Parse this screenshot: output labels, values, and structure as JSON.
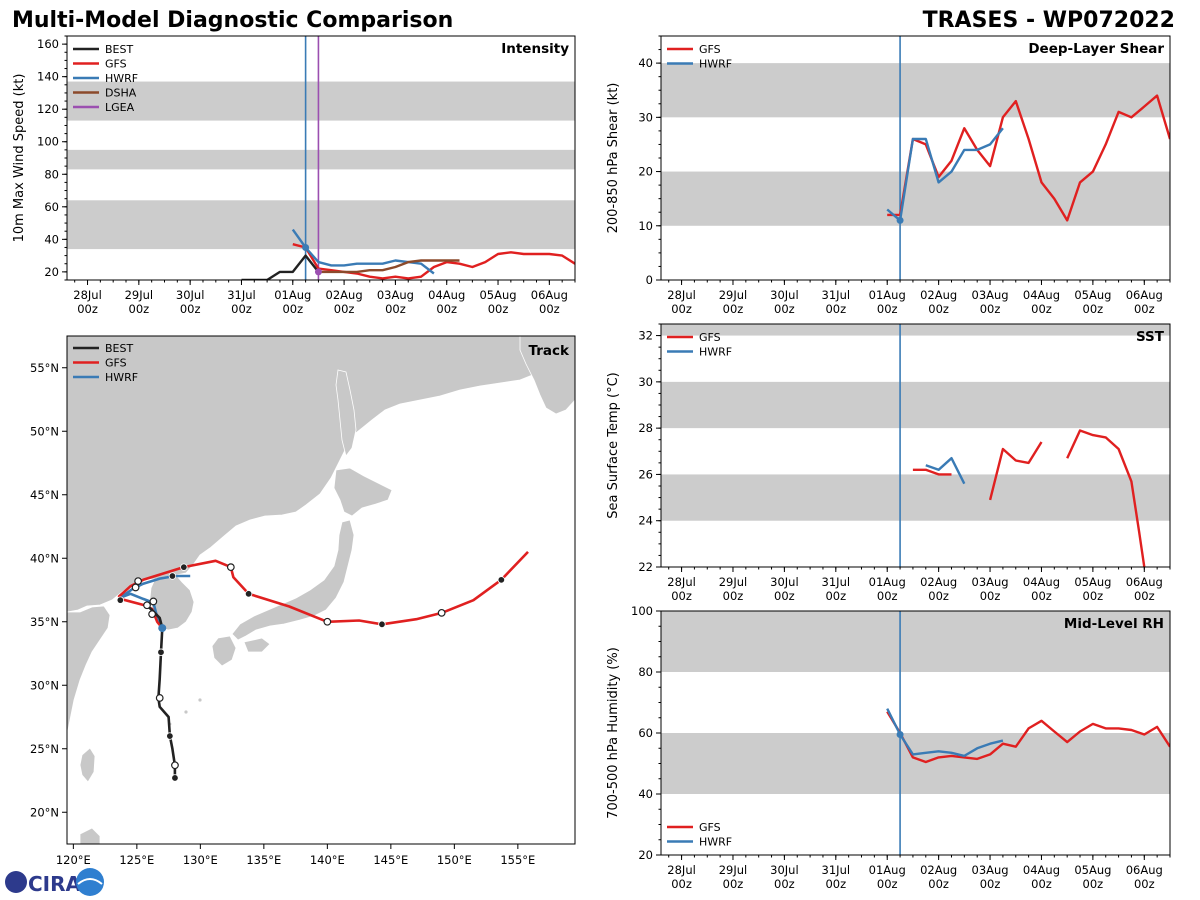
{
  "header": {
    "title": "Multi-Model Diagnostic Comparison",
    "storm": "TRASES - WP072022"
  },
  "logo": {
    "text": "CIRA"
  },
  "colors": {
    "BEST": "#222222",
    "GFS": "#e02020",
    "HWRF": "#3a7bb5",
    "DSHA": "#8b4a2b",
    "LGEA": "#9b4fb0",
    "band": "#cccccc",
    "land": "#c8c8c8"
  },
  "time_axis": {
    "labels": [
      [
        "28Jul",
        "00z"
      ],
      [
        "29Jul",
        "00z"
      ],
      [
        "30Jul",
        "00z"
      ],
      [
        "31Jul",
        "00z"
      ],
      [
        "01Aug",
        "00z"
      ],
      [
        "02Aug",
        "00z"
      ],
      [
        "03Aug",
        "00z"
      ],
      [
        "04Aug",
        "00z"
      ],
      [
        "05Aug",
        "00z"
      ],
      [
        "06Aug",
        "00z"
      ]
    ],
    "range_days": [
      -0.4,
      9.5
    ],
    "init_marker_day": 4.25,
    "lgea_marker_day": 4.5
  },
  "chart_data": [
    {
      "id": "intensity",
      "type": "line",
      "title": "Intensity",
      "ylabel": "10m Max Wind Speed (kt)",
      "ylim": [
        15,
        165
      ],
      "yticks": [
        20,
        40,
        60,
        80,
        100,
        120,
        140,
        160
      ],
      "bands": [
        [
          34,
          64
        ],
        [
          83,
          95
        ],
        [
          113,
          137
        ]
      ],
      "legend": [
        "BEST",
        "GFS",
        "HWRF",
        "DSHA",
        "LGEA"
      ],
      "series": [
        {
          "name": "BEST",
          "x": [
            3.0,
            3.25,
            3.5,
            3.75,
            4.0,
            4.25,
            4.5
          ],
          "y": [
            15,
            15,
            15,
            20,
            20,
            30,
            20
          ]
        },
        {
          "name": "GFS",
          "x": [
            4.0,
            4.25,
            4.5,
            4.75,
            5.0,
            5.25,
            5.5,
            5.75,
            6.0,
            6.25,
            6.5,
            6.75,
            7.0,
            7.25,
            7.5,
            7.75,
            8.0,
            8.25,
            8.5,
            8.75,
            9.0,
            9.25,
            9.5
          ],
          "y": [
            37,
            35,
            22,
            21,
            20,
            19,
            17,
            16,
            17,
            16,
            17,
            23,
            26,
            25,
            23,
            26,
            31,
            32,
            31,
            31,
            31,
            30,
            25
          ]
        },
        {
          "name": "HWRF",
          "x": [
            4.0,
            4.25,
            4.5,
            4.75,
            5.0,
            5.25,
            5.5,
            5.75,
            6.0,
            6.25,
            6.5,
            6.75
          ],
          "y": [
            46,
            35,
            26,
            24,
            24,
            25,
            25,
            25,
            27,
            26,
            25,
            19
          ]
        },
        {
          "name": "DSHA",
          "x": [
            4.5,
            4.75,
            5.0,
            5.25,
            5.5,
            5.75,
            6.0,
            6.25,
            6.5,
            6.75,
            7.0,
            7.25
          ],
          "y": [
            20,
            20,
            20,
            20,
            21,
            21,
            23,
            26,
            27,
            27,
            27,
            27
          ]
        }
      ]
    },
    {
      "id": "shear",
      "type": "line",
      "title": "Deep-Layer Shear",
      "ylabel": "200-850 hPa Shear (kt)",
      "ylim": [
        0,
        45
      ],
      "yticks": [
        0,
        10,
        20,
        30,
        40
      ],
      "bands": [
        [
          10,
          20
        ],
        [
          30,
          40
        ]
      ],
      "legend": [
        "GFS",
        "HWRF"
      ],
      "series": [
        {
          "name": "GFS",
          "x": [
            4.0,
            4.25,
            4.5,
            4.75,
            5.0,
            5.25,
            5.5,
            5.75,
            6.0,
            6.25,
            6.5,
            6.75,
            7.0,
            7.25,
            7.5,
            7.75,
            8.0,
            8.25,
            8.5,
            8.75,
            9.0,
            9.25,
            9.5
          ],
          "y": [
            12,
            12,
            26,
            25,
            19,
            22,
            28,
            24,
            21,
            30,
            33,
            26,
            18,
            15,
            11,
            18,
            20,
            25,
            31,
            30,
            32,
            34,
            26
          ]
        },
        {
          "name": "HWRF",
          "x": [
            4.0,
            4.25,
            4.5,
            4.75,
            5.0,
            5.25,
            5.5,
            5.75,
            6.0,
            6.25
          ],
          "y": [
            13,
            11,
            26,
            26,
            18,
            20,
            24,
            24,
            25,
            28
          ]
        }
      ]
    },
    {
      "id": "sst",
      "type": "line",
      "title": "SST",
      "ylabel": "Sea Surface Temp (°C)",
      "ylim": [
        22,
        32.5
      ],
      "yticks": [
        22,
        24,
        26,
        28,
        30,
        32
      ],
      "bands": [
        [
          24,
          26
        ],
        [
          28,
          30
        ],
        [
          32,
          34
        ]
      ],
      "legend": [
        "GFS",
        "HWRF"
      ],
      "series": [
        {
          "name": "GFS",
          "segments": [
            {
              "x": [
                4.5,
                4.75,
                5.0,
                5.25
              ],
              "y": [
                26.2,
                26.2,
                26.0,
                26.0
              ]
            },
            {
              "x": [
                6.0,
                6.25,
                6.5,
                6.75,
                7.0
              ],
              "y": [
                24.9,
                27.1,
                26.6,
                26.5,
                27.4
              ]
            },
            {
              "x": [
                7.5,
                7.75,
                8.0,
                8.25,
                8.5,
                8.75,
                8.9,
                9.0
              ],
              "y": [
                26.7,
                27.9,
                27.7,
                27.6,
                27.1,
                25.7,
                23.5,
                22.0
              ]
            }
          ]
        },
        {
          "name": "HWRF",
          "segments": [
            {
              "x": [
                4.75,
                5.0,
                5.25,
                5.5
              ],
              "y": [
                26.4,
                26.2,
                26.7,
                25.6
              ]
            }
          ]
        }
      ]
    },
    {
      "id": "rh",
      "type": "line",
      "title": "Mid-Level RH",
      "ylabel": "700-500 hPa Humidity (%)",
      "ylim": [
        20,
        100
      ],
      "yticks": [
        20,
        40,
        60,
        80,
        100
      ],
      "bands": [
        [
          40,
          60
        ],
        [
          80,
          100
        ]
      ],
      "legend": [
        "GFS",
        "HWRF"
      ],
      "series": [
        {
          "name": "GFS",
          "x": [
            4.0,
            4.25,
            4.5,
            4.75,
            5.0,
            5.25,
            5.5,
            5.75,
            6.0,
            6.25,
            6.5,
            6.75,
            7.0,
            7.25,
            7.5,
            7.75,
            8.0,
            8.25,
            8.5,
            8.75,
            9.0,
            9.25,
            9.5
          ],
          "y": [
            67,
            60,
            52,
            50.5,
            52,
            52.5,
            52,
            51.5,
            53,
            56.5,
            55.5,
            61.5,
            64,
            60.5,
            57,
            60.5,
            63,
            61.5,
            61.5,
            61,
            59.5,
            62,
            55.5
          ]
        },
        {
          "name": "HWRF",
          "x": [
            4.0,
            4.25,
            4.5,
            4.75,
            5.0,
            5.25,
            5.5,
            5.75,
            6.0,
            6.25
          ],
          "y": [
            68,
            59.5,
            53,
            53.5,
            54,
            53.5,
            52.5,
            55,
            56.5,
            57.5
          ]
        }
      ]
    },
    {
      "id": "track",
      "type": "scatter",
      "title": "Track",
      "lon_range": [
        119.5,
        159.5
      ],
      "lat_range": [
        17.5,
        57.5
      ],
      "xticks": [
        [
          "120°E",
          120
        ],
        [
          "125°E",
          125
        ],
        [
          "130°E",
          130
        ],
        [
          "135°E",
          135
        ],
        [
          "140°E",
          140
        ],
        [
          "145°E",
          145
        ],
        [
          "150°E",
          150
        ],
        [
          "155°E",
          155
        ]
      ],
      "yticks": [
        [
          "20°N",
          20
        ],
        [
          "25°N",
          25
        ],
        [
          "30°N",
          30
        ],
        [
          "35°N",
          35
        ],
        [
          "40°N",
          40
        ],
        [
          "45°N",
          45
        ],
        [
          "50°N",
          50
        ],
        [
          "55°N",
          55
        ]
      ],
      "legend": [
        "BEST",
        "GFS",
        "HWRF"
      ],
      "series": [
        {
          "name": "BEST",
          "lon": [
            128.0,
            128.0,
            127.8,
            127.6,
            127.5,
            126.8,
            126.7,
            126.8,
            126.9,
            127.0,
            126.8,
            126.3,
            125.8
          ],
          "lat": [
            22.7,
            23.7,
            25.0,
            26.0,
            27.5,
            28.3,
            29.0,
            30.5,
            32.6,
            34.5,
            35.3,
            35.8,
            36.3
          ]
        },
        {
          "name": "GFS",
          "lon": [
            127.0,
            126.6,
            126.2,
            125.6,
            123.7,
            123.6,
            124.5,
            125.5,
            128.7,
            131.2,
            132.4,
            132.6,
            133.8,
            137.0,
            140.0,
            142.5,
            144.3,
            147.0,
            149.0,
            151.5,
            153.7,
            155.8
          ],
          "lat": [
            34.5,
            35.0,
            36.0,
            36.3,
            36.8,
            37.0,
            37.8,
            38.3,
            39.3,
            39.8,
            39.3,
            38.5,
            37.2,
            36.2,
            35.0,
            35.1,
            34.8,
            35.2,
            35.7,
            36.7,
            38.3,
            40.5
          ],
          "markers_filled": [
            [
              123.7,
              36.7
            ],
            [
              127.8,
              38.6
            ],
            [
              128.7,
              39.3
            ],
            [
              133.8,
              37.2
            ],
            [
              144.3,
              34.8
            ],
            [
              153.7,
              38.3
            ],
            [
              126.9,
              32.6
            ],
            [
              127.6,
              26.0
            ],
            [
              128.0,
              22.7
            ]
          ],
          "markers_open": [
            [
              125.1,
              38.2
            ],
            [
              124.9,
              37.7
            ],
            [
              125.8,
              36.3
            ],
            [
              126.3,
              36.6
            ],
            [
              126.2,
              35.6
            ],
            [
              132.4,
              39.3
            ],
            [
              140.0,
              35.0
            ],
            [
              149.0,
              35.7
            ],
            [
              126.8,
              29.0
            ],
            [
              128.0,
              23.7
            ]
          ]
        },
        {
          "name": "HWRF",
          "lon": [
            127.0,
            126.7,
            126.3,
            125.5,
            124.5,
            123.7,
            124.7,
            125.5,
            126.8,
            128.0,
            129.2
          ],
          "lat": [
            34.5,
            35.0,
            36.5,
            36.8,
            37.2,
            36.9,
            37.6,
            38.0,
            38.4,
            38.6,
            38.6
          ]
        }
      ]
    }
  ]
}
